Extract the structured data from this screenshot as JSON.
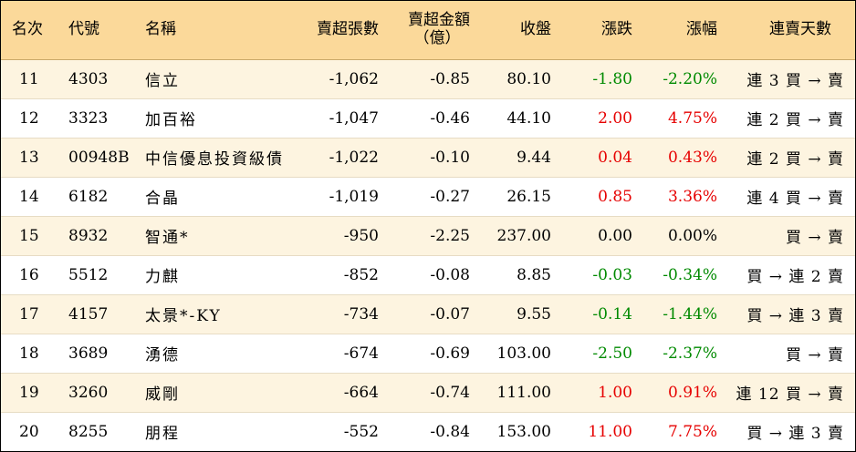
{
  "headers": {
    "rank": "名次",
    "code": "代號",
    "name": "名稱",
    "net_sell_lots": "賣超張數",
    "net_sell_amount_line1": "賣超金額",
    "net_sell_amount_line2": "（億）",
    "close": "收盤",
    "change": "漲跌",
    "change_pct": "漲幅",
    "streak": "連賣天數"
  },
  "rows": [
    {
      "rank": "11",
      "code": "4303",
      "name": "信立",
      "lots": "-1,062",
      "amount": "-0.85",
      "close": "80.10",
      "change": "-1.80",
      "pct": "-2.20%",
      "dir": "down",
      "streak": "連 3 買 → 賣"
    },
    {
      "rank": "12",
      "code": "3323",
      "name": "加百裕",
      "lots": "-1,047",
      "amount": "-0.46",
      "close": "44.10",
      "change": "2.00",
      "pct": "4.75%",
      "dir": "up",
      "streak": "連 2 買 → 賣"
    },
    {
      "rank": "13",
      "code": "00948B",
      "name": "中信優息投資級債",
      "lots": "-1,022",
      "amount": "-0.10",
      "close": "9.44",
      "change": "0.04",
      "pct": "0.43%",
      "dir": "up",
      "streak": "連 2 買 → 賣"
    },
    {
      "rank": "14",
      "code": "6182",
      "name": "合晶",
      "lots": "-1,019",
      "amount": "-0.27",
      "close": "26.15",
      "change": "0.85",
      "pct": "3.36%",
      "dir": "up",
      "streak": "連 4 買 → 賣"
    },
    {
      "rank": "15",
      "code": "8932",
      "name": "智通*",
      "lots": "-950",
      "amount": "-2.25",
      "close": "237.00",
      "change": "0.00",
      "pct": "0.00%",
      "dir": "flat",
      "streak": "買 → 賣"
    },
    {
      "rank": "16",
      "code": "5512",
      "name": "力麒",
      "lots": "-852",
      "amount": "-0.08",
      "close": "8.85",
      "change": "-0.03",
      "pct": "-0.34%",
      "dir": "down",
      "streak": "買 → 連 2 賣"
    },
    {
      "rank": "17",
      "code": "4157",
      "name": "太景*-KY",
      "lots": "-734",
      "amount": "-0.07",
      "close": "9.55",
      "change": "-0.14",
      "pct": "-1.44%",
      "dir": "down",
      "streak": "買 → 連 3 賣"
    },
    {
      "rank": "18",
      "code": "3689",
      "name": "湧德",
      "lots": "-674",
      "amount": "-0.69",
      "close": "103.00",
      "change": "-2.50",
      "pct": "-2.37%",
      "dir": "down",
      "streak": "買 → 賣"
    },
    {
      "rank": "19",
      "code": "3260",
      "name": "威剛",
      "lots": "-664",
      "amount": "-0.74",
      "close": "111.00",
      "change": "1.00",
      "pct": "0.91%",
      "dir": "up",
      "streak": "連 12 買 → 賣"
    },
    {
      "rank": "20",
      "code": "8255",
      "name": "朋程",
      "lots": "-552",
      "amount": "-0.84",
      "close": "153.00",
      "change": "11.00",
      "pct": "7.75%",
      "dir": "up",
      "streak": "買 → 連 3 賣"
    }
  ],
  "colors": {
    "header_bg": "#fbd99a",
    "stripe_bg": "#fdf4e0",
    "up": "#e60000",
    "down": "#008a00"
  }
}
